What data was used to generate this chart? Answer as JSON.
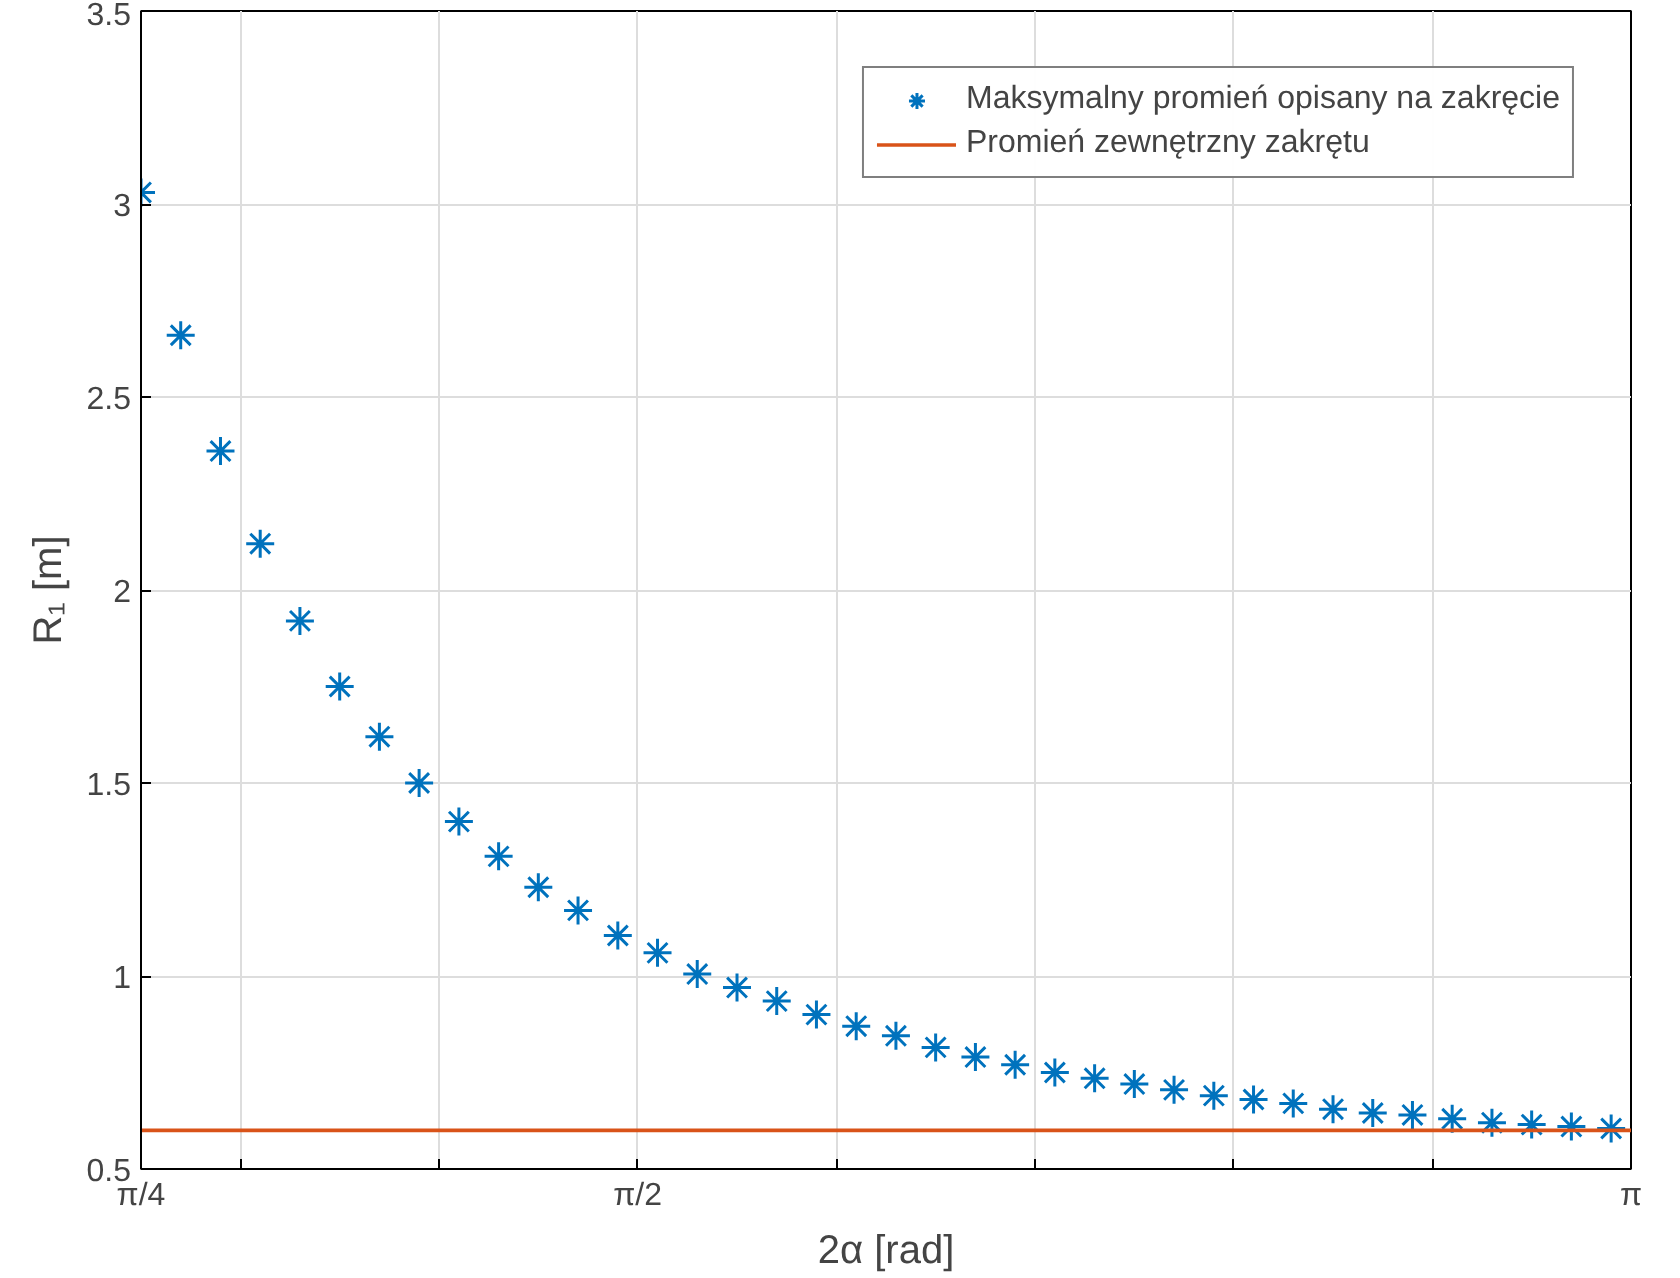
{
  "chart_data": {
    "type": "scatter",
    "xlabel": "2α [rad]",
    "ylabel": "R₁ [m]",
    "xlim": [
      0.785398,
      3.141593
    ],
    "ylim": [
      0.5,
      3.5
    ],
    "xticks": [
      {
        "value": 0.785398,
        "label": "π/4"
      },
      {
        "value": 0.942478,
        "label": null
      },
      {
        "value": 1.256637,
        "label": null
      },
      {
        "value": 1.570796,
        "label": "π/2"
      },
      {
        "value": 1.884956,
        "label": null
      },
      {
        "value": 2.199115,
        "label": null
      },
      {
        "value": 2.513274,
        "label": null
      },
      {
        "value": 2.827433,
        "label": null
      },
      {
        "value": 3.141593,
        "label": "π"
      }
    ],
    "yticks": [
      0.5,
      1,
      1.5,
      2,
      2.5,
      3,
      3.5
    ],
    "grid": true,
    "legend": "top right",
    "series": [
      {
        "name": "Maksymalny promień opisany na zakręcie",
        "color": "#0072bd",
        "marker": "cross",
        "x": [
          0.7854,
          0.8482,
          0.9111,
          0.9739,
          1.0367,
          1.0996,
          1.1624,
          1.2252,
          1.2881,
          1.3509,
          1.4137,
          1.4765,
          1.5394,
          1.6022,
          1.665,
          1.7279,
          1.7907,
          1.8535,
          1.9164,
          1.9792,
          2.042,
          2.1049,
          2.1677,
          2.2305,
          2.2934,
          2.3562,
          2.419,
          2.4819,
          2.5447,
          2.6075,
          2.6704,
          2.7332,
          2.796,
          2.8588,
          2.9217,
          2.9845,
          3.0473,
          3.1102
        ],
        "values": [
          3.03,
          2.66,
          2.36,
          2.12,
          1.92,
          1.75,
          1.62,
          1.5,
          1.4,
          1.31,
          1.23,
          1.17,
          1.105,
          1.06,
          1.005,
          0.97,
          0.935,
          0.9,
          0.87,
          0.845,
          0.815,
          0.79,
          0.77,
          0.75,
          0.735,
          0.72,
          0.705,
          0.69,
          0.68,
          0.67,
          0.655,
          0.645,
          0.64,
          0.63,
          0.62,
          0.615,
          0.61,
          0.605
        ]
      },
      {
        "name": "Promień zewnętrzny zakrętu",
        "color": "#d95319",
        "type": "line",
        "line_style": "solid",
        "x": [
          0.785398,
          3.141593
        ],
        "values": [
          0.6,
          0.6
        ]
      }
    ]
  }
}
